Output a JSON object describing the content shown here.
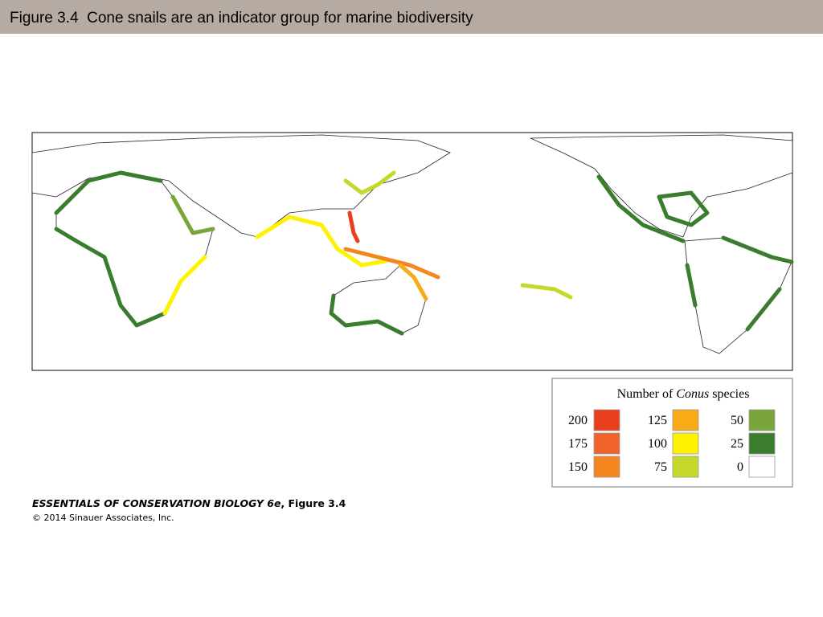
{
  "header": {
    "title": "Figure 3.4  Cone snails are an indicator group for marine biodiversity"
  },
  "legend": {
    "title": {
      "before": "Number of ",
      "italic": "Conus",
      "after": " species"
    },
    "items": [
      {
        "label": "200",
        "color": "#e8401c"
      },
      {
        "label": "175",
        "color": "#f0622a"
      },
      {
        "label": "150",
        "color": "#f5861f"
      },
      {
        "label": "125",
        "color": "#f8ab16"
      },
      {
        "label": "100",
        "color": "#fff200"
      },
      {
        "label": "75",
        "color": "#c5d92d"
      },
      {
        "label": "50",
        "color": "#7aa53a"
      },
      {
        "label": "25",
        "color": "#3a7d2f"
      },
      {
        "label": "0",
        "color": "#ffffff"
      }
    ]
  },
  "footer": {
    "source": {
      "title": "ESSENTIALS OF CONSERVATION BIOLOGY 6e",
      "figure": ", Figure 3.4"
    },
    "copyright": "© 2014 Sinauer Associates, Inc."
  }
}
